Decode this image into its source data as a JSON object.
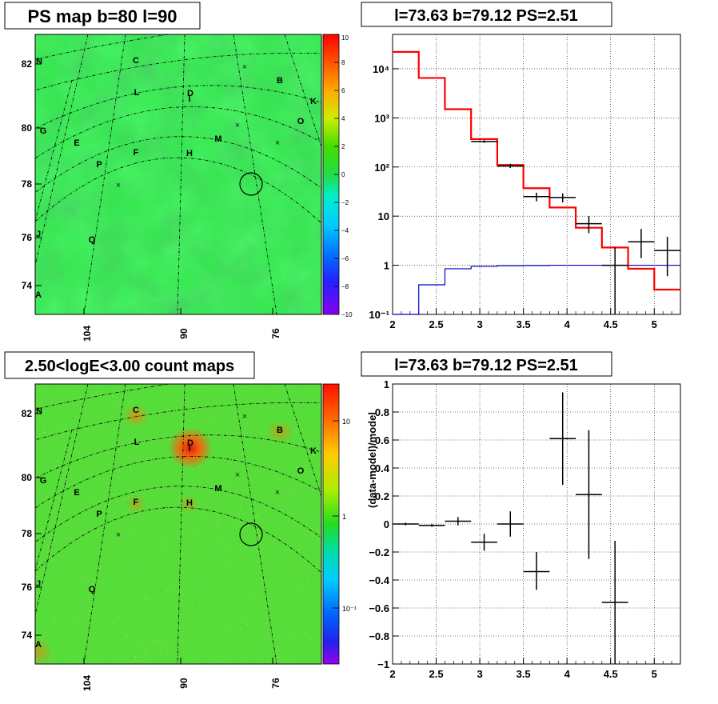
{
  "colors": {
    "red_model": "#ff0000",
    "blue_model": "#0000cc",
    "data_points": "#000000",
    "map_green": "#33e64c"
  },
  "panel_titles": {
    "ps_map": "PS map b=80 l=90",
    "spectrum": "l=73.63 b=79.12 PS=2.51",
    "count_map": "2.50<logE<3.00 count maps",
    "residual": "l=73.63 b=79.12 PS=2.51"
  },
  "maps": {
    "lat_ticks": [
      "82",
      "80",
      "78",
      "76",
      "74"
    ],
    "lon_ticks": [
      "104",
      "90",
      "76"
    ],
    "source_labels": [
      "N",
      "C",
      "B",
      "D",
      "I",
      "L",
      "K",
      "G",
      "O",
      "E",
      "M",
      "F",
      "H",
      "P",
      "J",
      "Q",
      "A"
    ],
    "ps_colorbar_ticks": [
      "10",
      "8",
      "6",
      "4",
      "2",
      "0",
      "−2",
      "−4",
      "−6",
      "−8",
      "−10"
    ],
    "count_colorbar_ticks": [
      "10",
      "1",
      "10⁻¹"
    ]
  },
  "chart_data": [
    {
      "type": "step",
      "title": "l=73.63 b=79.12 PS=2.51",
      "xlim": [
        2,
        5.3
      ],
      "ylim": [
        0.1,
        50000
      ],
      "yscale": "log",
      "grid": true,
      "x_ticks": [
        "2",
        "2.5",
        "3",
        "3.5",
        "4",
        "4.5",
        "5"
      ],
      "y_ticks": [
        "10⁻¹",
        "1",
        "10",
        "10²",
        "10³",
        "10⁴"
      ],
      "red_model": {
        "edges": [
          2,
          2.3,
          2.6,
          2.9,
          3.2,
          3.5,
          3.8,
          4.1,
          4.4,
          4.7,
          5.0,
          5.3
        ],
        "values": [
          22000,
          6500,
          1500,
          370,
          110,
          37,
          15,
          5.8,
          2.3,
          0.85,
          0.32
        ]
      },
      "blue_model": {
        "edges": [
          2,
          2.3,
          2.6,
          2.9,
          3.2,
          3.5,
          3.8,
          4.1,
          4.4,
          4.7,
          5.0,
          5.3
        ],
        "values": [
          0.1,
          0.4,
          0.85,
          0.95,
          0.98,
          0.99,
          1.0,
          1.0,
          1.0,
          1.0,
          1.0
        ]
      },
      "data": [
        {
          "x": 3.05,
          "y": 330,
          "xerr": 0.15,
          "ylo": 310,
          "yhi": 350
        },
        {
          "x": 3.35,
          "y": 105,
          "xerr": 0.15,
          "ylo": 95,
          "yhi": 116
        },
        {
          "x": 3.65,
          "y": 25,
          "xerr": 0.15,
          "ylo": 20,
          "yhi": 30
        },
        {
          "x": 3.95,
          "y": 24,
          "xerr": 0.15,
          "ylo": 19,
          "yhi": 29
        },
        {
          "x": 4.25,
          "y": 7,
          "xerr": 0.15,
          "ylo": 4.5,
          "yhi": 10
        },
        {
          "x": 4.55,
          "y": 1.0,
          "xerr": 0.15,
          "ylo": 0.1,
          "yhi": 2.3
        },
        {
          "x": 4.85,
          "y": 3,
          "xerr": 0.15,
          "ylo": 1.4,
          "yhi": 5.5
        },
        {
          "x": 5.15,
          "y": 2,
          "xerr": 0.15,
          "ylo": 0.6,
          "yhi": 3.8
        }
      ]
    },
    {
      "type": "scatter",
      "title": "l=73.63 b=79.12 PS=2.51",
      "xlim": [
        2,
        5.3
      ],
      "ylim": [
        -1,
        1
      ],
      "grid": true,
      "ylabel": "(data-model)/model",
      "x_ticks": [
        "2",
        "2.5",
        "3",
        "3.5",
        "4",
        "4.5",
        "5"
      ],
      "y_ticks": [
        "−1",
        "−0.8",
        "−0.6",
        "−0.4",
        "−0.2",
        "0",
        "0.2",
        "0.4",
        "0.6",
        "0.8",
        "1"
      ],
      "data": [
        {
          "x": 2.15,
          "y": 0.0,
          "xerr": 0.15,
          "ylo": -0.01,
          "yhi": 0.01
        },
        {
          "x": 2.45,
          "y": -0.01,
          "xerr": 0.15,
          "ylo": -0.02,
          "yhi": 0.0
        },
        {
          "x": 2.75,
          "y": 0.02,
          "xerr": 0.15,
          "ylo": -0.01,
          "yhi": 0.05
        },
        {
          "x": 3.05,
          "y": -0.13,
          "xerr": 0.15,
          "ylo": -0.19,
          "yhi": -0.07
        },
        {
          "x": 3.35,
          "y": 0.0,
          "xerr": 0.15,
          "ylo": -0.09,
          "yhi": 0.09
        },
        {
          "x": 3.65,
          "y": -0.34,
          "xerr": 0.15,
          "ylo": -0.47,
          "yhi": -0.2
        },
        {
          "x": 3.95,
          "y": 0.61,
          "xerr": 0.15,
          "ylo": 0.28,
          "yhi": 0.94
        },
        {
          "x": 4.25,
          "y": 0.21,
          "xerr": 0.15,
          "ylo": -0.25,
          "yhi": 0.67
        },
        {
          "x": 4.55,
          "y": -0.56,
          "xerr": 0.15,
          "ylo": -1.0,
          "yhi": -0.12
        }
      ]
    }
  ]
}
